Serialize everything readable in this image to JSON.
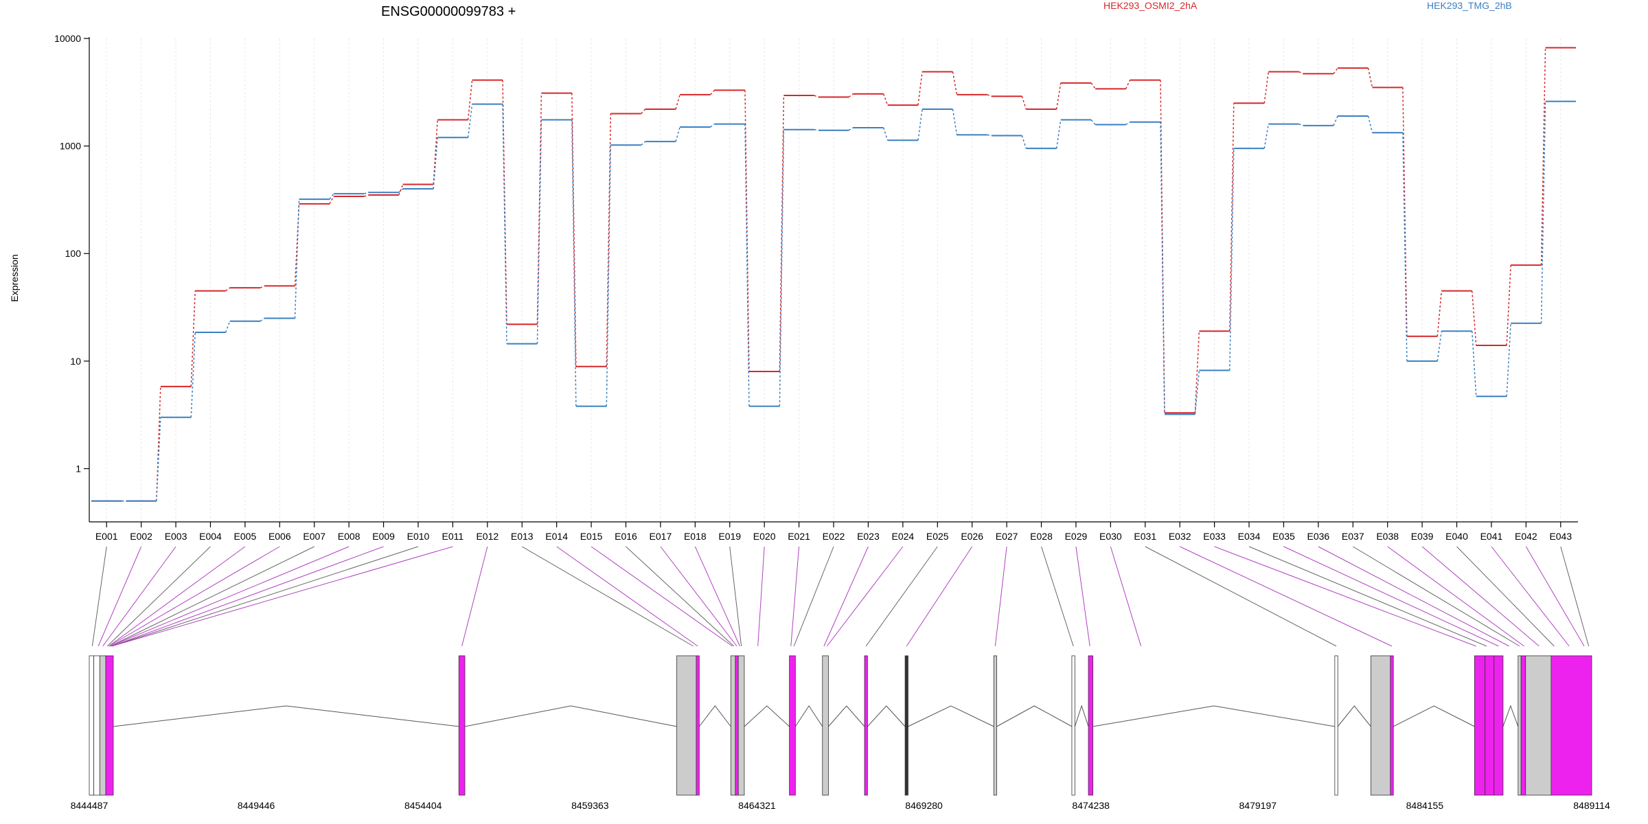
{
  "chart_data": {
    "type": "line",
    "title": "ENSG00000099783 +",
    "ylabel": "Expression",
    "xlabel": "",
    "yscale": "log",
    "ylim": [
      0.32,
      10000
    ],
    "y_ticks": [
      1,
      10,
      100,
      1000,
      10000
    ],
    "y_tick_labels": [
      "1",
      "10",
      "100",
      "1000",
      "10000"
    ],
    "grid": "vertical dotted lines at each exon",
    "legend_placement": "top-right",
    "categories": [
      "E001",
      "E002",
      "E003",
      "E004",
      "E005",
      "E006",
      "E007",
      "E008",
      "E009",
      "E010",
      "E011",
      "E012",
      "E013",
      "E014",
      "E015",
      "E016",
      "E017",
      "E018",
      "E019",
      "E020",
      "E021",
      "E022",
      "E023",
      "E024",
      "E025",
      "E026",
      "E027",
      "E028",
      "E029",
      "E030",
      "E031",
      "E032",
      "E033",
      "E034",
      "E035",
      "E036",
      "E037",
      "E038",
      "E039",
      "E040",
      "E041",
      "E042",
      "E043"
    ],
    "series": [
      {
        "name": "HEK293_OSMI2_2hA",
        "color": "#d62728",
        "values": [
          0.5,
          0.5,
          5.8,
          45,
          48,
          50,
          290,
          340,
          350,
          440,
          1750,
          4100,
          22,
          3100,
          8.9,
          2000,
          2200,
          3000,
          3300,
          8,
          2950,
          2850,
          3050,
          2400,
          4900,
          3000,
          2900,
          2200,
          3850,
          3400,
          4100,
          3.3,
          19,
          2500,
          4900,
          4700,
          5300,
          3500,
          17,
          45,
          14,
          78,
          8200
        ]
      },
      {
        "name": "HEK293_TMG_2hB",
        "color": "#3a7fc0",
        "values": [
          0.5,
          0.5,
          3,
          18.5,
          23.5,
          25,
          320,
          360,
          370,
          400,
          1200,
          2450,
          14.5,
          1750,
          3.8,
          1020,
          1100,
          1500,
          1600,
          3.8,
          1420,
          1400,
          1480,
          1130,
          2200,
          1270,
          1250,
          950,
          1750,
          1580,
          1670,
          3.2,
          8.2,
          950,
          1600,
          1550,
          1900,
          1330,
          10,
          19,
          4.7,
          22.5,
          2600
        ]
      }
    ],
    "gene_model": {
      "coordinate_labels": [
        "8444487",
        "8449446",
        "8454404",
        "8459363",
        "8464321",
        "8469280",
        "8474238",
        "8479197",
        "8484155",
        "8489114"
      ],
      "highlight_color": "#ee22ee",
      "constitutive_color": "#cccccc"
    }
  }
}
